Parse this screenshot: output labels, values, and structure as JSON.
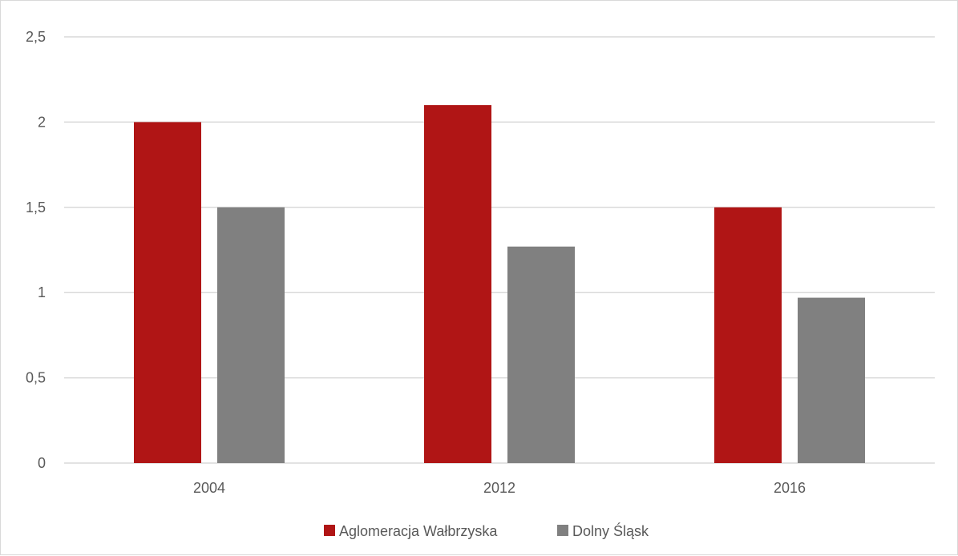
{
  "chart_data": {
    "type": "bar",
    "title": "",
    "xlabel": "",
    "ylabel": "",
    "categories": [
      "2004",
      "2012",
      "2016"
    ],
    "series": [
      {
        "name": "Aglomeracja Wałbrzyska",
        "values": [
          2.0,
          2.1,
          1.5
        ],
        "color": "#b01515"
      },
      {
        "name": "Dolny Śląsk",
        "values": [
          1.5,
          1.27,
          0.97
        ],
        "color": "#808080"
      }
    ],
    "ylim": [
      0,
      2.5
    ],
    "yticks": [
      0,
      0.5,
      1,
      1.5,
      2,
      2.5
    ],
    "ytick_labels": [
      "0",
      "0,5",
      "1",
      "1,5",
      "2",
      "2,5"
    ],
    "grid": true,
    "gridline_color": "#d9d9d9",
    "legend_position": "bottom"
  }
}
